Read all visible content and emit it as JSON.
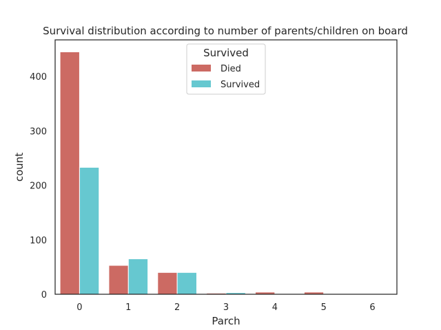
{
  "chart_data": {
    "type": "bar",
    "title": "Survival distribution according to number of parents/children on board",
    "xlabel": "Parch",
    "ylabel": "count",
    "categories": [
      "0",
      "1",
      "2",
      "3",
      "4",
      "5",
      "6"
    ],
    "series": [
      {
        "name": "Died",
        "values": [
          445,
          53,
          40,
          2,
          4,
          4,
          1
        ],
        "color": "#cc6a63"
      },
      {
        "name": "Survived",
        "values": [
          233,
          65,
          40,
          3,
          0,
          1,
          0
        ],
        "color": "#66c8d0"
      }
    ],
    "ylim": [
      0,
      467
    ],
    "yticks": [
      0,
      100,
      200,
      300,
      400
    ],
    "grid": false,
    "legend": {
      "title": "Survived",
      "placement": "upper-center"
    }
  }
}
